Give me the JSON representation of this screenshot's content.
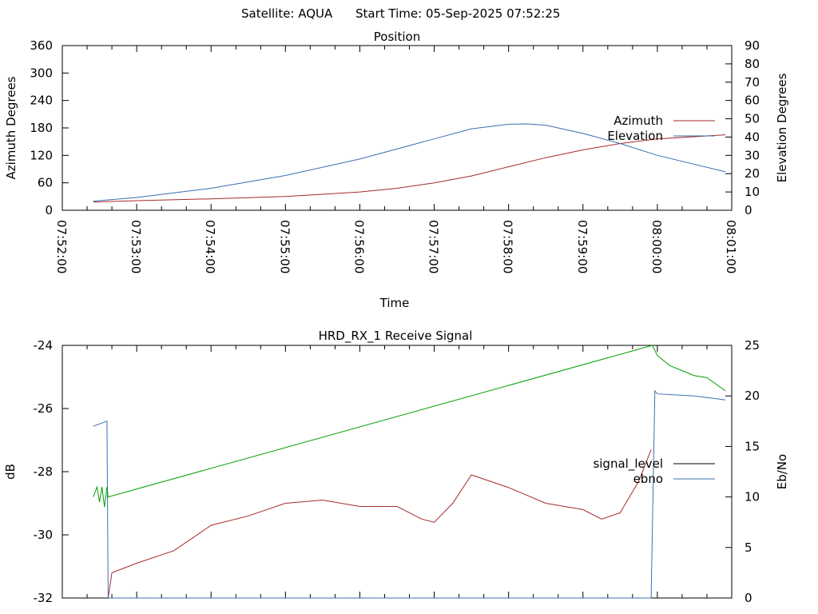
{
  "header": {
    "satellite": "Satellite: AQUA",
    "start_time": "Start Time: 05-Sep-2025 07:52:25"
  },
  "chart_data": [
    {
      "type": "line",
      "title": "Position",
      "xlabel": "Time",
      "ylabel": "Azimuth Degrees",
      "y2label": "Elevation Degrees",
      "xlim": [
        "07:52:00",
        "08:01:00"
      ],
      "xticks": [
        "07:52:00",
        "07:53:00",
        "07:54:00",
        "07:55:00",
        "07:56:00",
        "07:57:00",
        "07:58:00",
        "07:59:00",
        "08:00:00",
        "08:01:00"
      ],
      "ylim": [
        0,
        360
      ],
      "yticks": [
        "0",
        "60",
        "120",
        "180",
        "240",
        "300",
        "360"
      ],
      "y2lim": [
        0,
        90
      ],
      "y2ticks": [
        "0",
        "10",
        "20",
        "30",
        "40",
        "50",
        "60",
        "70",
        "80",
        "90"
      ],
      "legend_position": "right",
      "series": [
        {
          "name": "Azimuth",
          "axis": "y",
          "color": "#a52a2a",
          "x": [
            "07:52:25",
            "07:53:00",
            "07:54:00",
            "07:55:00",
            "07:56:00",
            "07:56:30",
            "07:57:00",
            "07:57:30",
            "07:58:00",
            "07:58:30",
            "07:59:00",
            "07:59:30",
            "08:00:00",
            "08:00:55"
          ],
          "values": [
            18,
            21,
            25,
            30,
            40,
            48,
            60,
            75,
            95,
            115,
            132,
            146,
            156,
            165
          ]
        },
        {
          "name": "Elevation",
          "axis": "y2",
          "color": "#3a6fb0",
          "x": [
            "07:52:25",
            "07:53:00",
            "07:54:00",
            "07:55:00",
            "07:56:00",
            "07:57:00",
            "07:57:30",
            "07:58:00",
            "07:58:15",
            "07:58:30",
            "07:59:00",
            "07:59:30",
            "08:00:00",
            "08:00:55"
          ],
          "values": [
            5,
            7,
            12,
            19,
            28,
            39,
            44.5,
            47,
            47.2,
            46.5,
            42,
            36.5,
            30,
            21
          ]
        }
      ]
    },
    {
      "type": "line",
      "title": "HRD_RX_1 Receive Signal",
      "ylabel": "dB",
      "y2label": "Eb/No",
      "xlim": [
        "07:52:00",
        "08:01:00"
      ],
      "ylim": [
        -32,
        -24
      ],
      "yticks": [
        "-32",
        "-30",
        "-28",
        "-26",
        "-24"
      ],
      "y2lim": [
        0,
        25
      ],
      "y2ticks": [
        "0",
        "5",
        "10",
        "15",
        "20",
        "25"
      ],
      "legend_position": "right",
      "series": [
        {
          "name": "signal_level",
          "axis": "y",
          "color": "#000000",
          "legend_only": true,
          "x": [],
          "values": []
        },
        {
          "name": "ebno",
          "axis": "y2",
          "color": "#3a6fb0",
          "x": [
            "07:52:25",
            "07:52:36",
            "07:52:37",
            "07:58:10",
            "07:59:55",
            "07:59:58",
            "08:00:00",
            "08:00:30",
            "08:00:55"
          ],
          "values": [
            17,
            17.5,
            0,
            0,
            0,
            20.5,
            20.2,
            20,
            19.6
          ]
        },
        {
          "name": "",
          "axis": "y",
          "color": "#a52a2a",
          "x": [
            "07:52:37",
            "07:52:40",
            "07:53:00",
            "07:53:30",
            "07:54:00",
            "07:54:30",
            "07:55:00",
            "07:55:30",
            "07:56:00",
            "07:56:30",
            "07:56:50",
            "07:57:00",
            "07:57:15",
            "07:57:30",
            "07:58:00",
            "07:58:30",
            "07:59:00",
            "07:59:15",
            "07:59:30",
            "07:59:45",
            "07:59:55"
          ],
          "values": [
            -32,
            -31.2,
            -30.9,
            -30.5,
            -29.7,
            -29.4,
            -29,
            -28.9,
            -29.1,
            -29.1,
            -29.5,
            -29.6,
            -29,
            -28.1,
            -28.5,
            -29,
            -29.2,
            -29.5,
            -29.3,
            -28.3,
            -27.3
          ]
        },
        {
          "name": "",
          "axis": "y2",
          "color": "#00a000",
          "x": [
            "07:52:25",
            "07:52:28",
            "07:52:30",
            "07:52:32",
            "07:52:34",
            "07:52:36",
            "07:52:37",
            "07:59:56",
            "08:00:00",
            "08:00:10",
            "08:00:20",
            "08:00:30",
            "08:00:40",
            "08:00:55"
          ],
          "values": [
            10,
            11,
            9.5,
            11,
            9,
            11,
            10,
            25,
            24,
            23,
            22.5,
            22,
            21.8,
            20.5
          ]
        }
      ]
    }
  ]
}
